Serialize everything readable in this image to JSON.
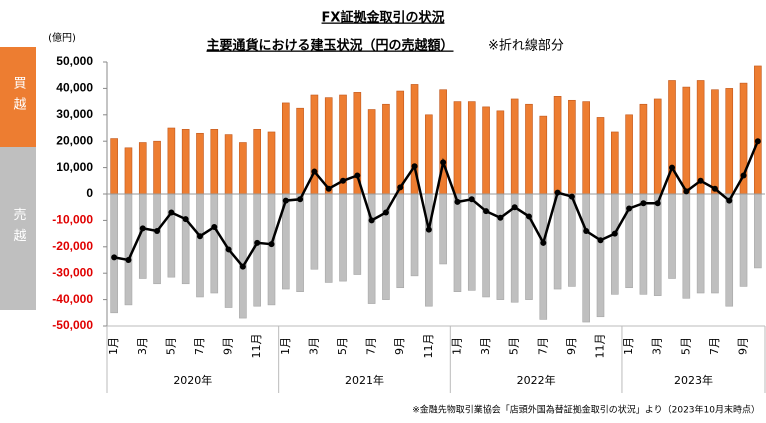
{
  "chart_data": {
    "type": "bar_line",
    "title": "FX証拠金取引の状況",
    "subtitle": "主要通貨における建玉状況（円の売越額）",
    "subtitle_note": "※折れ線部分",
    "unit": "(億円)",
    "source": "※金融先物取引業協会「店頭外国為替証拠金取引の状況」より（2023年10月末時点）",
    "side_labels": [
      {
        "text": "買越",
        "color": "#ed7d31"
      },
      {
        "text": "売越",
        "color": "#bfbfbf"
      }
    ],
    "categories": [
      "1月",
      null,
      "3月",
      null,
      "5月",
      null,
      "7月",
      null,
      "9月",
      null,
      "11月",
      null,
      "1月",
      null,
      "3月",
      null,
      "5月",
      null,
      "7月",
      null,
      "9月",
      null,
      "11月",
      null,
      "1月",
      null,
      "3月",
      null,
      "5月",
      null,
      "7月",
      null,
      "9月",
      null,
      "11月",
      null,
      "1月",
      null,
      "3月",
      null,
      "5月",
      null,
      "7月",
      null,
      "9月",
      null
    ],
    "years": [
      "2020年",
      "2021年",
      "2022年",
      "2023年"
    ],
    "series": [
      {
        "kind": "bar",
        "color": "#ed7d31",
        "values": [
          21000,
          17500,
          19500,
          20000,
          25000,
          24500,
          23000,
          24500,
          22500,
          19500,
          24500,
          23500,
          34500,
          32500,
          37500,
          36500,
          37500,
          38500,
          32000,
          34000,
          39000,
          41500,
          30000,
          39500,
          35000,
          35000,
          33000,
          31500,
          36000,
          34000,
          29500,
          37000,
          35500,
          35000,
          29000,
          23500,
          30000,
          34000,
          36000,
          43000,
          40500,
          43000,
          39500,
          40000,
          42000,
          48500
        ]
      },
      {
        "kind": "bar",
        "color": "#bfbfbf",
        "values": [
          -45000,
          -42000,
          -32000,
          -34000,
          -31500,
          -34000,
          -39000,
          -37500,
          -43000,
          -47000,
          -42500,
          -42000,
          -36000,
          -37000,
          -28500,
          -33500,
          -33000,
          -30500,
          -41500,
          -40000,
          -35500,
          -31000,
          -42500,
          -26500,
          -37000,
          -36500,
          -39000,
          -40000,
          -41000,
          -40000,
          -47500,
          -36000,
          -35000,
          -48500,
          -46500,
          -38000,
          -35500,
          -38000,
          -38500,
          -32000,
          -39500,
          -37500,
          -37500,
          -42500,
          -35000,
          -28000
        ]
      },
      {
        "kind": "line",
        "color": "#000000",
        "values": [
          -24000,
          -25000,
          -13000,
          -14000,
          -7000,
          -9500,
          -16000,
          -12500,
          -21000,
          -27500,
          -18500,
          -19000,
          -2500,
          -2000,
          8500,
          2000,
          5000,
          7000,
          -10000,
          -7000,
          2500,
          10500,
          -13500,
          12000,
          -3000,
          -2000,
          -6500,
          -9000,
          -5000,
          -8500,
          -18500,
          500,
          -1000,
          -14000,
          -17500,
          -15000,
          -5500,
          -3500,
          -3500,
          10000,
          1000,
          5000,
          2000,
          -2500,
          7000,
          20000
        ]
      }
    ],
    "ylim": [
      -50000,
      50000
    ],
    "yticks": [
      {
        "value": 50000,
        "label": "50,000"
      },
      {
        "value": 40000,
        "label": "40,000"
      },
      {
        "value": 30000,
        "label": "30,000"
      },
      {
        "value": 20000,
        "label": "20,000"
      },
      {
        "value": 10000,
        "label": "10,000"
      },
      0,
      {
        "value": -10000,
        "label": "-10,000"
      },
      {
        "value": -20000,
        "label": "-20,000"
      },
      {
        "value": -30000,
        "label": "-30,000"
      },
      {
        "value": -40000,
        "label": "-40,000"
      },
      {
        "value": -50000,
        "label": "-50,000"
      }
    ],
    "negative_tick_color": "#e00000"
  }
}
